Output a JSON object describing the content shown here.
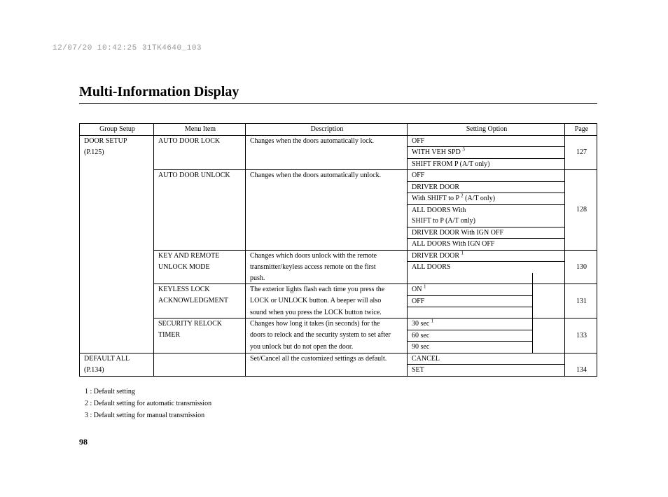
{
  "timestamp": "12/07/20 10:42:25 31TK4640_103",
  "title": "Multi-Information Display",
  "headers": {
    "group": "Group Setup",
    "menu": "Menu Item",
    "desc": "Description",
    "opt": "Setting Option",
    "page": "Page"
  },
  "group1": {
    "name": "DOOR SETUP",
    "ref": "(P.125)"
  },
  "group2": {
    "name": "DEFAULT ALL",
    "ref": "(P.134)"
  },
  "menu": {
    "autoLock": "AUTO DOOR LOCK",
    "autoUnlock": "AUTO DOOR UNLOCK",
    "keyRemote1": "KEY AND REMOTE",
    "keyRemote2": "UNLOCK MODE",
    "keyless1": "KEYLESS LOCK",
    "keyless2": "ACKNOWLEDGMENT",
    "relock1": "SECURITY RELOCK",
    "relock2": "TIMER"
  },
  "desc": {
    "autoLock": "Changes when the doors automatically lock.",
    "autoUnlock": "Changes when the doors automatically unlock.",
    "keyRemote1": "Changes which doors unlock with the remote",
    "keyRemote2": "transmitter/keyless access remote on the first",
    "keyRemote3": "push.",
    "keyless1": "The exterior lights flash each time you press the",
    "keyless2": "LOCK or UNLOCK button. A beeper will also",
    "keyless3": "sound when you press the LOCK button twice.",
    "relock1": "Changes how long it takes (in seconds) for the",
    "relock2": "doors to relock and the security system to set after",
    "relock3": "you unlock but do not open the door.",
    "default": "Set/Cancel all the customized settings as default."
  },
  "opt": {
    "off": "OFF",
    "withVehSpd": "WITH VEH SPD ",
    "shiftFromP": "SHIFT FROM P (A/T only)",
    "driverDoor": "DRIVER DOOR",
    "withShiftToP_pre": "With SHIFT to P ",
    "withShiftToP_suf": " (A/T only)",
    "allDoorsWith": "ALL DOORS With",
    "shiftToP": "SHIFT to P (A/T only)",
    "driverDoorIgn": "DRIVER DOOR With IGN OFF",
    "allDoorsIgn": "ALL DOORS With IGN OFF",
    "driverDoorSup": "DRIVER DOOR ",
    "allDoors": "ALL DOORS",
    "on": "ON ",
    "sec30": "30 sec ",
    "sec60": "60 sec",
    "sec90": "90 sec",
    "cancel": "CANCEL",
    "set": "SET"
  },
  "pages": {
    "p127": "127",
    "p128": "128",
    "p130": "130",
    "p131": "131",
    "p133": "133",
    "p134": "134"
  },
  "sup": {
    "s1": "1",
    "s2": "2",
    "s3": "3"
  },
  "footnotes": {
    "n1": "1 :   Default setting",
    "n2": "2 :   Default setting for automatic transmission",
    "n3": "3 :   Default setting for manual transmission"
  },
  "pageNumber": "98"
}
